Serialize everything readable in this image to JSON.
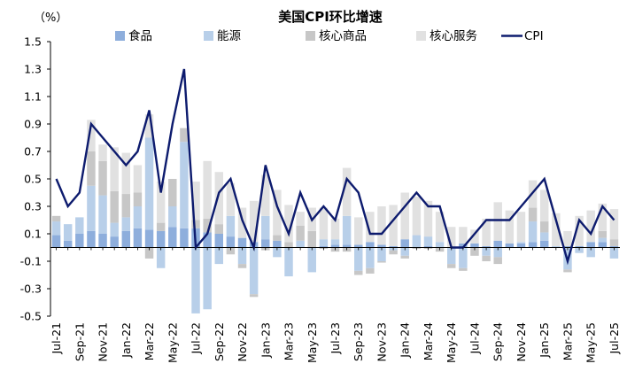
{
  "chart_data": {
    "type": "bar",
    "title": "美国CPI环比增速",
    "unit_label": "（%）",
    "ylim": [
      -0.5,
      1.5
    ],
    "yticks": [
      -0.5,
      -0.3,
      -0.1,
      0.1,
      0.3,
      0.5,
      0.7,
      0.9,
      1.1,
      1.3,
      1.5
    ],
    "ytick_labels": [
      "-0.5",
      "-0.3",
      "-0.1",
      "0.1",
      "0.3",
      "0.5",
      "0.7",
      "0.9",
      "1.1",
      "1.3",
      "1.5"
    ],
    "legend_position": "top",
    "categories": [
      "Jul-21",
      "Aug-21",
      "Sep-21",
      "Oct-21",
      "Nov-21",
      "Dec-21",
      "Jan-22",
      "Feb-22",
      "Mar-22",
      "Apr-22",
      "May-22",
      "Jun-22",
      "Jul-22",
      "Aug-22",
      "Sep-22",
      "Oct-22",
      "Nov-22",
      "Dec-22",
      "Jan-23",
      "Feb-23",
      "Mar-23",
      "Apr-23",
      "May-23",
      "Jun-23",
      "Jul-23",
      "Aug-23",
      "Sep-23",
      "Oct-23",
      "Nov-23",
      "Dec-23",
      "Jan-24",
      "Feb-24",
      "Mar-24",
      "Apr-24",
      "May-24",
      "Jun-24",
      "Jul-24",
      "Aug-24",
      "Sep-24",
      "Oct-24",
      "Nov-24",
      "Dec-24",
      "Jan-25",
      "Feb-25",
      "Mar-25",
      "Apr-25",
      "May-25",
      "Jun-25",
      "Jul-25"
    ],
    "xtick_labels": [
      "Jul-21",
      "Sep-21",
      "Nov-21",
      "Jan-22",
      "Mar-22",
      "May-22",
      "Jul-22",
      "Sep-22",
      "Nov-22",
      "Jan-23",
      "Mar-23",
      "May-23",
      "Jul-23",
      "Sep-23",
      "Nov-23",
      "Jan-24",
      "Mar-24",
      "May-24",
      "Jul-24",
      "Sep-24",
      "Nov-24",
      "Jan-25",
      "Mar-25",
      "May-25",
      "Jul-25"
    ],
    "series": [
      {
        "name": "食品",
        "kind": "bar",
        "color": "#8eaedc",
        "values": [
          0.09,
          0.05,
          0.1,
          0.12,
          0.1,
          0.08,
          0.12,
          0.14,
          0.13,
          0.12,
          0.15,
          0.14,
          0.14,
          0.11,
          0.1,
          0.08,
          0.07,
          0.04,
          0.06,
          0.05,
          0.0,
          0.0,
          0.0,
          0.01,
          0.02,
          0.02,
          0.02,
          0.04,
          0.02,
          0.01,
          0.06,
          0.0,
          0.01,
          0.0,
          0.0,
          0.03,
          0.03,
          0.01,
          0.05,
          0.03,
          0.03,
          0.04,
          0.05,
          0.0,
          0.01,
          0.01,
          0.04,
          0.04,
          0.01
        ]
      },
      {
        "name": "能源",
        "kind": "bar",
        "color": "#b8cfe9",
        "values": [
          0.1,
          0.12,
          0.12,
          0.33,
          0.28,
          0.1,
          0.1,
          0.16,
          0.67,
          -0.15,
          0.15,
          0.63,
          -0.48,
          -0.45,
          -0.12,
          0.15,
          -0.12,
          -0.34,
          0.17,
          -0.07,
          -0.21,
          0.05,
          -0.18,
          0.05,
          0.04,
          0.21,
          -0.17,
          -0.15,
          -0.1,
          -0.02,
          -0.06,
          0.09,
          0.07,
          0.04,
          -0.12,
          -0.15,
          0.0,
          -0.06,
          -0.07,
          0.0,
          0.01,
          0.15,
          0.06,
          0.01,
          -0.16,
          -0.04,
          -0.07,
          0.03,
          -0.08
        ]
      },
      {
        "name": "核心商品",
        "kind": "bar",
        "color": "#c7c7c7",
        "values": [
          0.04,
          0.0,
          0.0,
          0.25,
          0.25,
          0.23,
          0.17,
          0.1,
          -0.08,
          0.06,
          0.2,
          0.1,
          0.06,
          0.1,
          0.07,
          -0.05,
          -0.03,
          -0.02,
          -0.02,
          0.04,
          0.04,
          0.11,
          0.12,
          -0.01,
          -0.03,
          -0.03,
          -0.03,
          -0.04,
          -0.01,
          -0.03,
          -0.02,
          -0.01,
          -0.01,
          -0.03,
          -0.03,
          -0.02,
          -0.06,
          -0.04,
          -0.05,
          0.0,
          0.0,
          0.1,
          0.08,
          0.0,
          -0.02,
          0.0,
          0.0,
          0.05,
          0.05
        ]
      },
      {
        "name": "核心服务",
        "kind": "bar",
        "color": "#e1e1e1",
        "values": [
          0.0,
          0.0,
          0.0,
          0.23,
          0.12,
          0.32,
          0.3,
          0.2,
          0.17,
          0.3,
          0.0,
          0.0,
          0.28,
          0.42,
          0.38,
          0.24,
          0.22,
          0.3,
          0.3,
          0.33,
          0.27,
          0.1,
          0.17,
          0.23,
          0.15,
          0.35,
          0.2,
          0.22,
          0.28,
          0.3,
          0.34,
          0.28,
          0.26,
          0.22,
          0.15,
          0.12,
          0.1,
          0.2,
          0.28,
          0.24,
          0.22,
          0.2,
          0.23,
          0.24,
          0.11,
          0.22,
          0.23,
          0.2,
          0.22
        ]
      },
      {
        "name": "CPI",
        "kind": "line",
        "color": "#0d1b6e",
        "values": [
          0.5,
          0.3,
          0.4,
          0.9,
          0.8,
          0.7,
          0.6,
          0.7,
          1.0,
          0.4,
          0.9,
          1.3,
          0.0,
          0.1,
          0.4,
          0.5,
          0.2,
          0.0,
          0.6,
          0.3,
          0.1,
          0.4,
          0.2,
          0.3,
          0.2,
          0.5,
          0.4,
          0.1,
          0.1,
          0.2,
          0.3,
          0.4,
          0.3,
          0.3,
          0.0,
          0.0,
          0.1,
          0.2,
          0.2,
          0.2,
          0.3,
          0.4,
          0.5,
          0.2,
          -0.1,
          0.2,
          0.1,
          0.3,
          0.2
        ]
      }
    ]
  }
}
